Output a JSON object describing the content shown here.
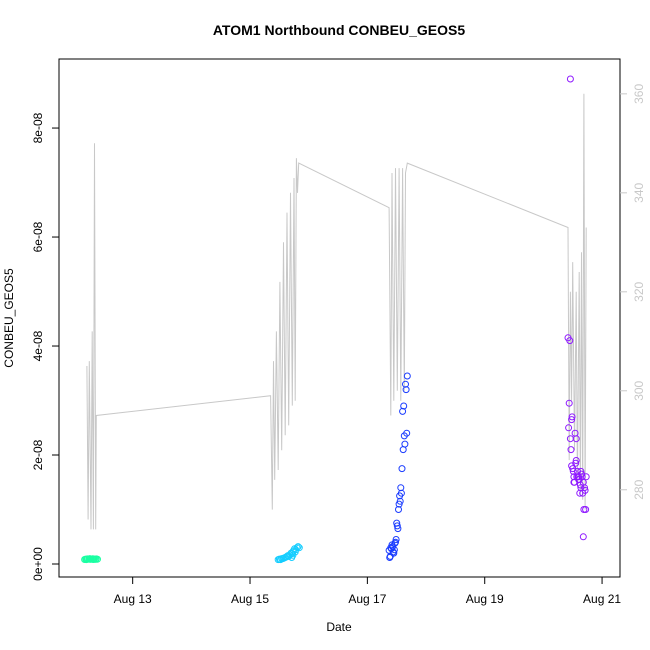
{
  "chart_data": {
    "type": "scatter",
    "title": "ATOM1 Northbound CONBEU_GEOS5",
    "xlabel": "Date",
    "ylabel": "CONBEU_GEOS5",
    "x_unit": "day of August 2016",
    "xlim": [
      12.0,
      21.05
    ],
    "ylim": [
      0,
      8.9e-08
    ],
    "x_ticks": [
      13,
      15,
      17,
      19,
      21
    ],
    "x_tick_labels": [
      "Aug 13",
      "Aug 15",
      "Aug 17",
      "Aug 19",
      "Aug 21"
    ],
    "y_ticks": [
      0,
      2e-08,
      4e-08,
      6e-08,
      8e-08
    ],
    "y_tick_labels": [
      "0e+00",
      "2e-08",
      "4e-08",
      "6e-08",
      "8e-08"
    ],
    "y2_range": [
      265,
      363
    ],
    "y2_ticks": [
      280,
      300,
      320,
      340,
      360
    ],
    "y2_tick_labels": [
      "280",
      "300",
      "320",
      "340",
      "360"
    ],
    "line_color": "#c8c8c8",
    "axis_color": "#000000",
    "y2_axis_color": "#c8c8c8",
    "line_series": {
      "color": "#c8c8c8",
      "x": [
        12.22,
        12.24,
        12.26,
        12.29,
        12.31,
        12.33,
        12.35,
        12.37,
        12.38,
        12.38,
        15.35,
        15.38,
        15.4,
        15.42,
        15.45,
        15.48,
        15.51,
        15.54,
        15.57,
        15.6,
        15.63,
        15.66,
        15.69,
        15.72,
        15.75,
        15.77,
        15.79,
        15.81,
        15.83,
        17.37,
        17.4,
        17.42,
        17.45,
        17.48,
        17.51,
        17.54,
        17.57,
        17.6,
        17.63,
        17.65,
        17.68,
        20.42,
        20.44,
        20.46,
        20.48,
        20.5,
        20.53,
        20.56,
        20.58,
        20.61,
        20.63,
        20.65,
        20.67,
        20.69,
        20.71,
        20.73
      ],
      "y": [
        305,
        274,
        306,
        272,
        312,
        272,
        350,
        272,
        295,
        295,
        299,
        276,
        306,
        282,
        312,
        284,
        322,
        288,
        330,
        291,
        336,
        293,
        340,
        297,
        343,
        298,
        347,
        340,
        346,
        337,
        295,
        344,
        298,
        345,
        300,
        345,
        298,
        345,
        300,
        344,
        346,
        333,
        286,
        320,
        298,
        326,
        288,
        320,
        281,
        324,
        279,
        328,
        278,
        360,
        276,
        333
      ]
    },
    "series": [
      {
        "color": "#1affa2",
        "x": [
          12.18,
          12.2,
          12.22,
          12.23,
          12.25,
          12.26,
          12.28,
          12.29,
          12.31,
          12.32,
          12.34,
          12.35,
          12.37,
          12.38,
          12.4,
          12.21,
          12.27,
          12.33
        ],
        "y": [
          8.2e-10,
          9e-10,
          8.6e-10,
          9.4e-10,
          8.8e-10,
          9.2e-10,
          8.5e-10,
          9.1e-10,
          8.7e-10,
          9.5e-10,
          8.9e-10,
          9e-10,
          8.4e-10,
          9.3e-10,
          8.8e-10,
          8e-10,
          1e-09,
          8.3e-10
        ]
      },
      {
        "color": "#14cdff",
        "x": [
          15.48,
          15.5,
          15.52,
          15.54,
          15.56,
          15.58,
          15.6,
          15.62,
          15.64,
          15.66,
          15.68,
          15.7,
          15.72,
          15.74,
          15.76,
          15.78,
          15.8,
          15.82,
          15.84,
          15.71,
          15.73,
          15.77
        ],
        "y": [
          8e-10,
          9e-10,
          8e-10,
          1e-09,
          1e-09,
          1.1e-09,
          1.2e-09,
          1.3e-09,
          1.5e-09,
          1.4e-09,
          1.7e-09,
          2e-09,
          1.9e-09,
          2.4e-09,
          2.8e-09,
          2.6e-09,
          3e-09,
          3.2e-09,
          3e-09,
          1.2e-09,
          1.6e-09,
          2.2e-09
        ]
      },
      {
        "color": "#1a3cff",
        "x": [
          17.37,
          17.39,
          17.41,
          17.43,
          17.45,
          17.47,
          17.49,
          17.51,
          17.53,
          17.55,
          17.57,
          17.59,
          17.61,
          17.63,
          17.65,
          17.68,
          17.4,
          17.44,
          17.48,
          17.52,
          17.56,
          17.6,
          17.62,
          17.66,
          17.38,
          17.42,
          17.46,
          17.5,
          17.54,
          17.58,
          17.64,
          17.67
        ],
        "y": [
          2.5e-09,
          1.4e-09,
          2.8e-09,
          3.2e-09,
          2e-09,
          3.8e-09,
          4.5e-09,
          7e-09,
          1e-08,
          1.25e-08,
          1.4e-08,
          1.75e-08,
          2.1e-08,
          2.35e-08,
          3.3e-08,
          3.45e-08,
          3e-09,
          2.2e-09,
          4e-09,
          6.5e-09,
          1.15e-08,
          2.8e-08,
          2.9e-08,
          3.2e-08,
          1.2e-09,
          3.5e-09,
          2.6e-09,
          7.5e-09,
          1.1e-08,
          1.3e-08,
          2.2e-08,
          2.4e-08
        ]
      },
      {
        "color": "#8f1aff",
        "x": [
          20.42,
          20.44,
          20.46,
          20.48,
          20.5,
          20.52,
          20.54,
          20.56,
          20.58,
          20.6,
          20.62,
          20.64,
          20.66,
          20.68,
          20.7,
          20.72,
          20.43,
          20.45,
          20.47,
          20.49,
          20.51,
          20.53,
          20.55,
          20.57,
          20.59,
          20.61,
          20.63,
          20.65,
          20.67,
          20.69,
          20.71,
          20.48,
          20.52,
          20.56,
          20.6,
          20.64,
          20.68,
          20.73,
          20.46
        ],
        "y": [
          4.15e-08,
          2.95e-08,
          8.9e-08,
          2.65e-08,
          1.75e-08,
          1.5e-08,
          2.4e-08,
          1.9e-08,
          1.7e-08,
          1.6e-08,
          1.3e-08,
          1.7e-08,
          1.6e-08,
          5e-09,
          1.4e-08,
          1e-08,
          2.5e-08,
          4.1e-08,
          2.1e-08,
          2.7e-08,
          1.7e-08,
          1.5e-08,
          1.85e-08,
          1.6e-08,
          1.6e-08,
          1.55e-08,
          1.45e-08,
          1.65e-08,
          1.3e-08,
          1e-08,
          1.35e-08,
          1.8e-08,
          1.6e-08,
          2.3e-08,
          1.55e-08,
          1.4e-08,
          1.5e-08,
          1.6e-08,
          2.3e-08
        ]
      }
    ]
  }
}
